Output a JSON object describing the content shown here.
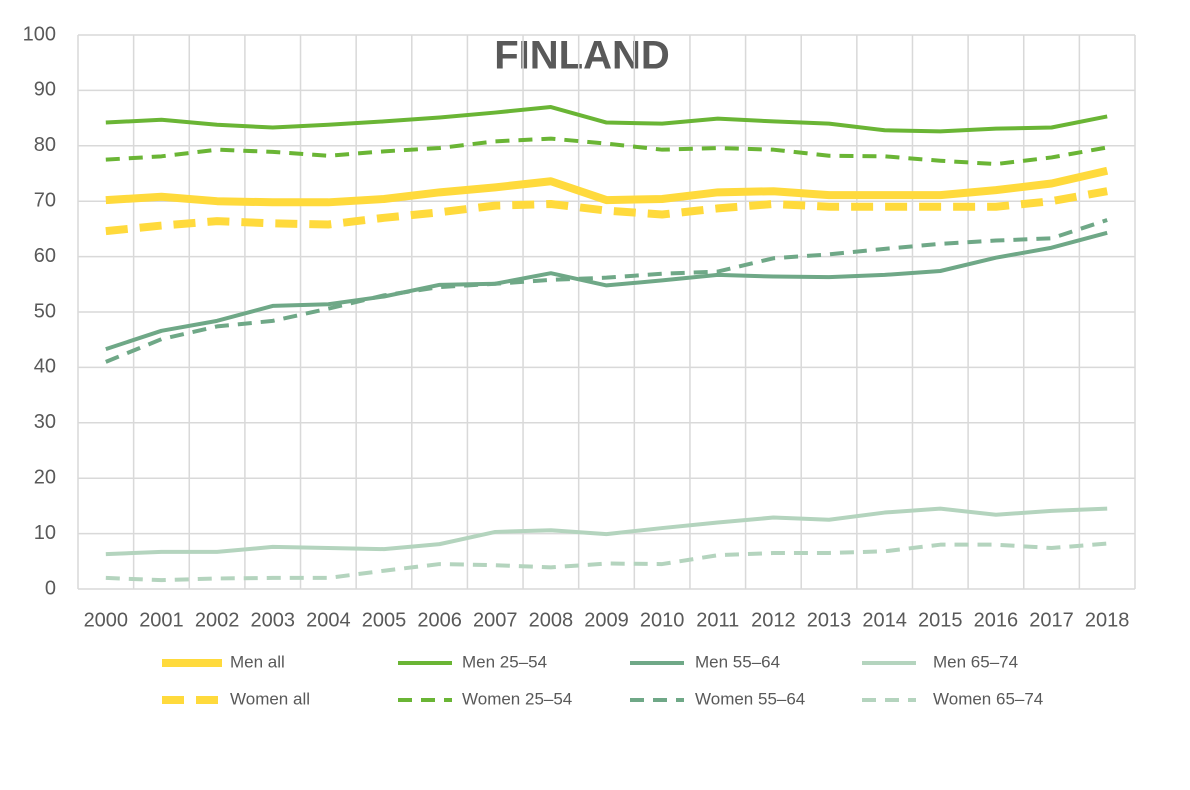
{
  "chart_data": {
    "type": "line",
    "title": "FINLAND",
    "categories": [
      "2000",
      "2001",
      "2002",
      "2003",
      "2004",
      "2005",
      "2006",
      "2007",
      "2008",
      "2009",
      "2010",
      "2011",
      "2012",
      "2013",
      "2014",
      "2015",
      "2016",
      "2017",
      "2018"
    ],
    "ylim": [
      0,
      100
    ],
    "yticks": [
      0,
      10,
      20,
      30,
      40,
      50,
      60,
      70,
      80,
      90,
      100
    ],
    "grid": true,
    "series": [
      {
        "name": "Men all",
        "color": "#FFDA3C",
        "width": 8,
        "dashed": false,
        "values": [
          70.2,
          70.8,
          70.0,
          69.8,
          69.8,
          70.4,
          71.6,
          72.5,
          73.6,
          70.2,
          70.4,
          71.6,
          71.8,
          71.1,
          71.1,
          71.1,
          72.0,
          73.2,
          75.5
        ]
      },
      {
        "name": "Women all",
        "color": "#FFDA3C",
        "width": 8,
        "dashed": true,
        "values": [
          64.6,
          65.6,
          66.4,
          66.0,
          65.8,
          67.0,
          68.0,
          69.2,
          69.5,
          68.3,
          67.6,
          68.7,
          69.5,
          69.0,
          69.0,
          69.0,
          69.0,
          70.0,
          71.8
        ]
      },
      {
        "name": "Men 25–54",
        "color": "#6AB535",
        "width": 4,
        "dashed": false,
        "values": [
          84.2,
          84.7,
          83.8,
          83.3,
          83.8,
          84.4,
          85.1,
          86.0,
          87.0,
          84.2,
          84.0,
          84.9,
          84.4,
          84.0,
          82.8,
          82.6,
          83.1,
          83.3,
          85.3
        ]
      },
      {
        "name": "Women 25–54",
        "color": "#6AB535",
        "width": 4,
        "dashed": true,
        "values": [
          77.5,
          78.1,
          79.3,
          78.9,
          78.2,
          79.0,
          79.6,
          80.8,
          81.3,
          80.4,
          79.3,
          79.6,
          79.3,
          78.2,
          78.1,
          77.3,
          76.7,
          77.9,
          79.7
        ]
      },
      {
        "name": "Men 55–64",
        "color": "#6FA887",
        "width": 4,
        "dashed": false,
        "values": [
          43.3,
          46.6,
          48.4,
          51.1,
          51.4,
          52.8,
          54.9,
          55.1,
          57.0,
          54.8,
          55.7,
          56.7,
          56.4,
          56.3,
          56.7,
          57.4,
          59.8,
          61.6,
          64.3
        ]
      },
      {
        "name": "Women 55–64",
        "color": "#6FA887",
        "width": 4,
        "dashed": true,
        "values": [
          41.0,
          45.1,
          47.4,
          48.4,
          50.6,
          53.0,
          54.5,
          55.1,
          55.8,
          56.2,
          56.9,
          57.3,
          59.7,
          60.4,
          61.4,
          62.3,
          62.9,
          63.3,
          66.6
        ]
      },
      {
        "name": "Men 65–74",
        "color": "#B4D4BE",
        "width": 4,
        "dashed": false,
        "values": [
          6.3,
          6.7,
          6.7,
          7.6,
          7.4,
          7.2,
          8.1,
          10.3,
          10.6,
          9.9,
          11.0,
          12.0,
          12.9,
          12.5,
          13.8,
          14.5,
          13.4,
          14.1,
          14.5
        ]
      },
      {
        "name": "Women 65–74",
        "color": "#B4D4BE",
        "width": 4,
        "dashed": true,
        "values": [
          2.0,
          1.6,
          1.9,
          2.0,
          2.0,
          3.3,
          4.5,
          4.3,
          3.9,
          4.6,
          4.5,
          6.1,
          6.5,
          6.5,
          6.8,
          8.0,
          8.0,
          7.4,
          8.2
        ]
      }
    ]
  }
}
